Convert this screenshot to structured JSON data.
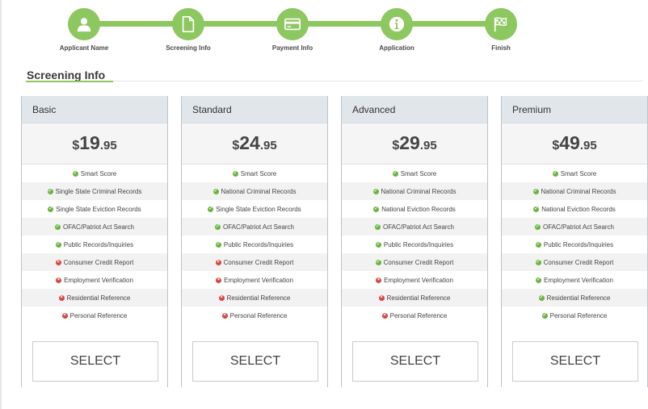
{
  "stepper": {
    "steps": [
      {
        "label": "Applicant Name",
        "icon": "user-icon"
      },
      {
        "label": "Screening Info",
        "icon": "document-icon"
      },
      {
        "label": "Payment Info",
        "icon": "credit-card-icon"
      },
      {
        "label": "Application",
        "icon": "info-icon"
      },
      {
        "label": "Finish",
        "icon": "checkered-flag-icon"
      }
    ],
    "color": "#8cc760"
  },
  "section": {
    "title": "Screening Info"
  },
  "plans": [
    {
      "name": "Basic",
      "price": {
        "currency": "$",
        "whole": "19",
        "cents": ".95"
      },
      "features": [
        {
          "text": "Smart Score",
          "included": true
        },
        {
          "text": "Single State Criminal Records",
          "included": true
        },
        {
          "text": "Single State Eviction Records",
          "included": true
        },
        {
          "text": "OFAC/Patriot Act Search",
          "included": true
        },
        {
          "text": "Public Records/Inquiries",
          "included": true
        },
        {
          "text": "Consumer Credit Report",
          "included": false
        },
        {
          "text": "Employment Verification",
          "included": false
        },
        {
          "text": "Residential Reference",
          "included": false
        },
        {
          "text": "Personal Reference",
          "included": false
        }
      ],
      "select_label": "SELECT"
    },
    {
      "name": "Standard",
      "price": {
        "currency": "$",
        "whole": "24",
        "cents": ".95"
      },
      "features": [
        {
          "text": "Smart Score",
          "included": true
        },
        {
          "text": "National Criminal Records",
          "included": true
        },
        {
          "text": "Single State Eviction Records",
          "included": true
        },
        {
          "text": "OFAC/Patriot Act Search",
          "included": true
        },
        {
          "text": "Public Records/Inquiries",
          "included": true
        },
        {
          "text": "Consumer Credit Report",
          "included": false
        },
        {
          "text": "Employment Verification",
          "included": false
        },
        {
          "text": "Residential Reference",
          "included": false
        },
        {
          "text": "Personal Reference",
          "included": false
        }
      ],
      "select_label": "SELECT"
    },
    {
      "name": "Advanced",
      "price": {
        "currency": "$",
        "whole": "29",
        "cents": ".95"
      },
      "features": [
        {
          "text": "Smart Score",
          "included": true
        },
        {
          "text": "National Criminal Records",
          "included": true
        },
        {
          "text": "National Eviction Records",
          "included": true
        },
        {
          "text": "OFAC/Patriot Act Search",
          "included": true
        },
        {
          "text": "Public Records/Inquiries",
          "included": true
        },
        {
          "text": "Consumer Credit Report",
          "included": true
        },
        {
          "text": "Employment Verification",
          "included": false
        },
        {
          "text": "Residential Reference",
          "included": false
        },
        {
          "text": "Personal Reference",
          "included": false
        }
      ],
      "select_label": "SELECT"
    },
    {
      "name": "Premium",
      "price": {
        "currency": "$",
        "whole": "49",
        "cents": ".95"
      },
      "features": [
        {
          "text": "Smart Score",
          "included": true
        },
        {
          "text": "National Criminal Records",
          "included": true
        },
        {
          "text": "National Eviction Records",
          "included": true
        },
        {
          "text": "OFAC/Patriot Act Search",
          "included": true
        },
        {
          "text": "Public Records/Inquiries",
          "included": true
        },
        {
          "text": "Consumer Credit Report",
          "included": true
        },
        {
          "text": "Employment Verification",
          "included": true
        },
        {
          "text": "Residential Reference",
          "included": true
        },
        {
          "text": "Personal Reference",
          "included": true
        }
      ],
      "select_label": "SELECT"
    }
  ]
}
